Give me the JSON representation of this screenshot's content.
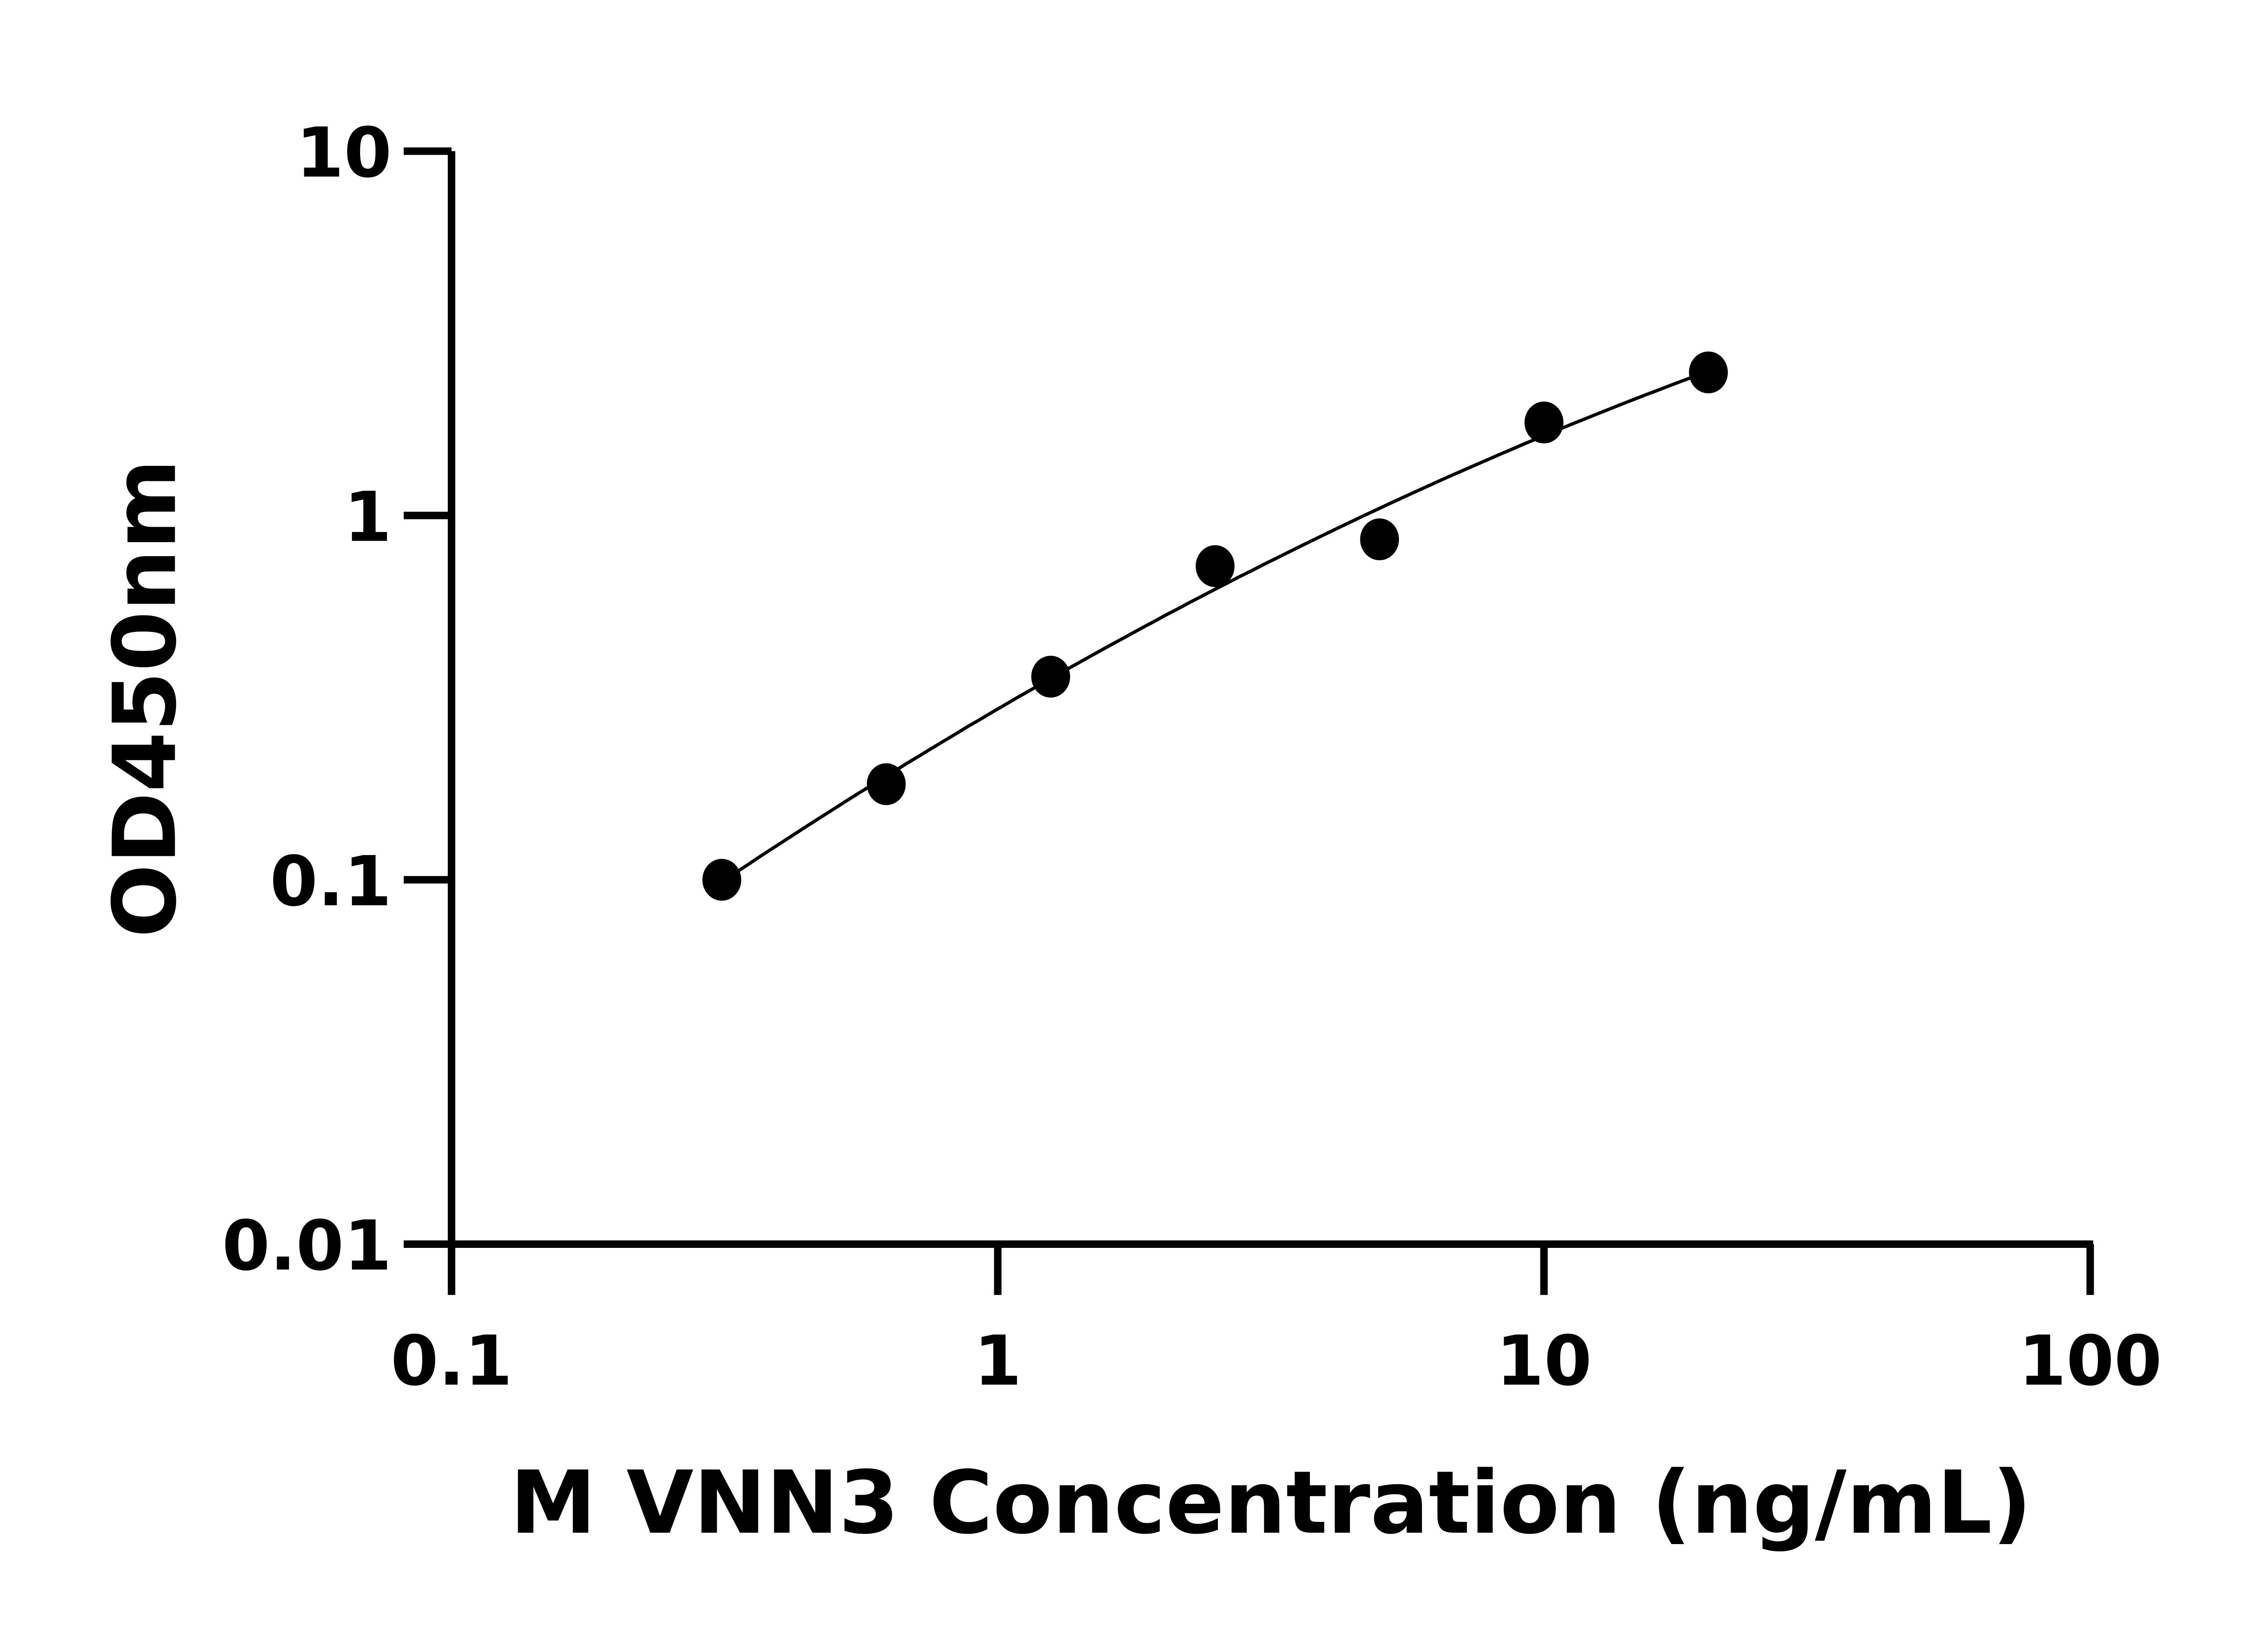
{
  "chart_data": {
    "type": "scatter",
    "title": "",
    "xlabel": "M VNN3 Concentration (ng/mL)",
    "ylabel": "OD450nm",
    "x_scale": "log",
    "y_scale": "log",
    "xlim": [
      0.1,
      100
    ],
    "ylim": [
      0.01,
      10
    ],
    "x_ticks": [
      "0.1",
      "1",
      "10",
      "100"
    ],
    "y_ticks": [
      "0.01",
      "0.1",
      "1",
      "10"
    ],
    "grid": false,
    "fit_curve": true,
    "marker_color": "#000000",
    "x": [
      0.3125,
      0.625,
      1.25,
      2.5,
      5,
      10,
      20
    ],
    "y": [
      0.1,
      0.183,
      0.361,
      0.726,
      0.86,
      1.8,
      2.47
    ]
  }
}
